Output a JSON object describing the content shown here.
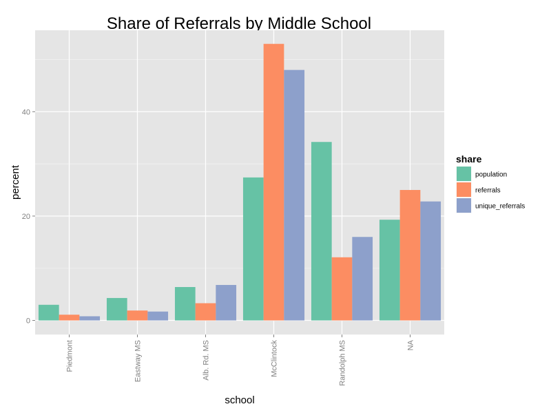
{
  "chart_data": {
    "type": "bar",
    "title": "Share of Referrals by Middle School",
    "xlabel": "school",
    "ylabel": "percent",
    "categories": [
      "Piedmont",
      "Eastway MS",
      "Alb. Rd. MS",
      "McClintock",
      "Randolph MS",
      "NA"
    ],
    "series": [
      {
        "name": "population",
        "color": "#66c2a5",
        "values": [
          3.0,
          4.3,
          6.4,
          27.4,
          34.2,
          19.3
        ]
      },
      {
        "name": "referrals",
        "color": "#fc8d62",
        "values": [
          1.1,
          1.9,
          3.3,
          53.0,
          12.1,
          25.0
        ]
      },
      {
        "name": "unique_referrals",
        "color": "#8da0cb",
        "values": [
          0.8,
          1.7,
          6.8,
          48.0,
          16.0,
          22.8
        ]
      }
    ],
    "ylim": [
      -2.7,
      55.6
    ],
    "yticks": [
      0,
      20,
      40
    ],
    "grid": true,
    "legend_title": "share",
    "legend_position": "right",
    "x_tick_rotation": "vertical",
    "colors": {
      "panel_background": "#e5e5e5",
      "gridline": "#ffffff",
      "tick_label": "#7f7f7f"
    }
  }
}
